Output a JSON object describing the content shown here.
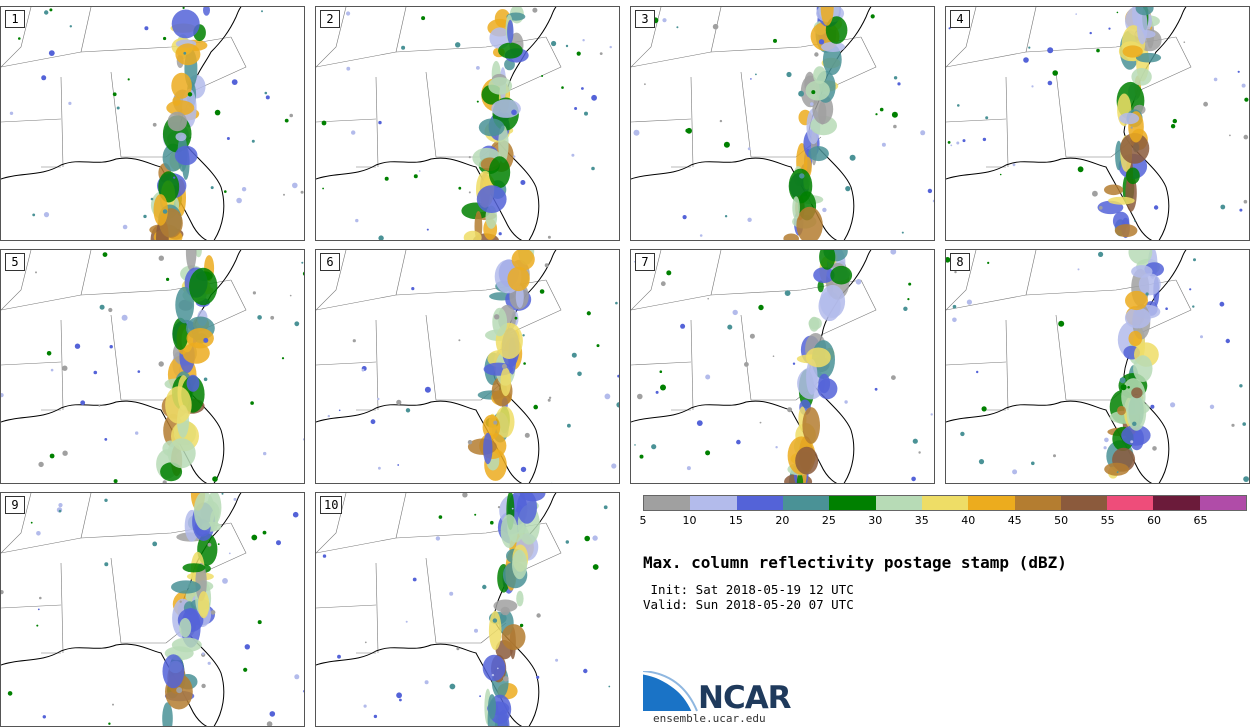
{
  "panels": [
    {
      "label": "1"
    },
    {
      "label": "2"
    },
    {
      "label": "3"
    },
    {
      "label": "4"
    },
    {
      "label": "5"
    },
    {
      "label": "6"
    },
    {
      "label": "7"
    },
    {
      "label": "8"
    },
    {
      "label": "9"
    },
    {
      "label": "10"
    }
  ],
  "colorbar": {
    "colors": [
      "#a0a0a0",
      "#b3bbeb",
      "#5463d8",
      "#4a9296",
      "#008000",
      "#b7dbb6",
      "#eedd66",
      "#ecac1e",
      "#b47d30",
      "#8b5a3c",
      "#ee4d7a",
      "#6b1b3a",
      "#b04ca8"
    ],
    "ticks": [
      "5",
      "10",
      "15",
      "20",
      "25",
      "30",
      "35",
      "40",
      "45",
      "50",
      "55",
      "60",
      "65"
    ]
  },
  "title": "Max. column reflectivity postage stamp (dBZ)",
  "init": " Init: Sat 2018-05-19 12 UTC",
  "valid": "Valid: Sun 2018-05-20 07 UTC",
  "logo": {
    "text": "NCAR",
    "url": "ensemble.ucar.edu"
  }
}
